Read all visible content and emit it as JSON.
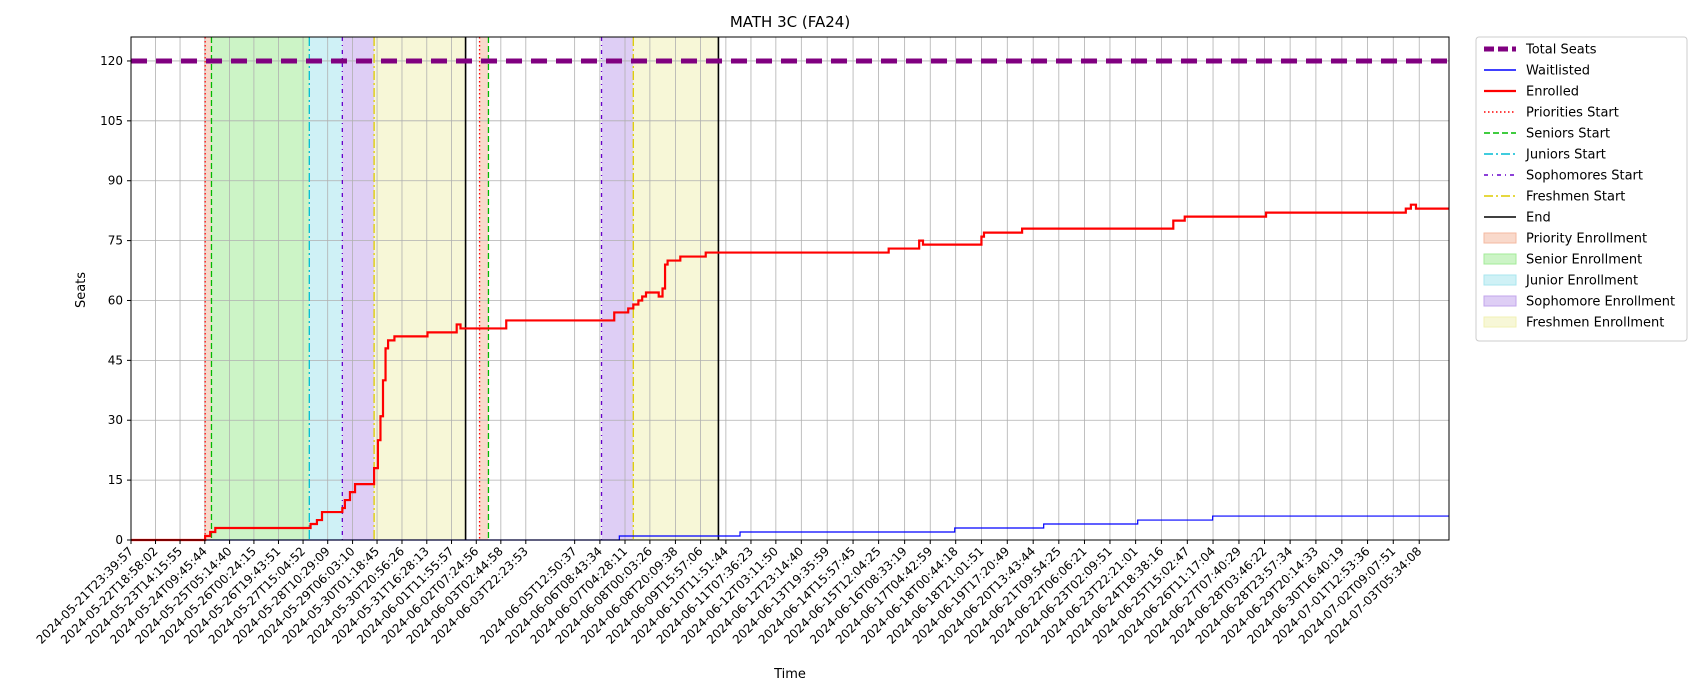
{
  "chart_data": {
    "type": "line",
    "title": "MATH 3C (FA24)",
    "xlabel": "Time",
    "ylabel": "Seats",
    "ylim": [
      0,
      126
    ],
    "yticks": [
      0,
      15,
      30,
      45,
      60,
      75,
      90,
      105,
      120
    ],
    "grid": true,
    "legend_position": "outside-right",
    "x_start": "2024-05-21T23:39:57",
    "x_end": "2024-07-04T05:00:00",
    "xtick_labels": [
      "2024-05-21T23:39:57",
      "2024-05-22T18:58:02",
      "2024-05-23T14:15:55",
      "2024-05-24T09:45:44",
      "2024-05-25T05:14:40",
      "2024-05-26T00:24:15",
      "2024-05-26T19:43:51",
      "2024-05-27T15:04:52",
      "2024-05-28T10:29:09",
      "2024-05-29T06:03:10",
      "2024-05-30T01:18:45",
      "2024-05-30T20:56:26",
      "2024-05-31T16:28:13",
      "2024-06-01T11:55:57",
      "2024-06-02T07:24:56",
      "2024-06-03T02:44:58",
      "2024-06-03T22:23:53",
      "2024-06-05T12:50:37",
      "2024-06-06T08:43:34",
      "2024-06-07T04:28:11",
      "2024-06-08T00:03:26",
      "2024-06-08T20:09:38",
      "2024-06-09T15:57:06",
      "2024-06-10T11:51:44",
      "2024-06-11T07:36:23",
      "2024-06-12T03:11:50",
      "2024-06-12T23:14:40",
      "2024-06-13T19:35:59",
      "2024-06-14T15:57:45",
      "2024-06-15T12:04:25",
      "2024-06-16T08:33:19",
      "2024-06-17T04:42:59",
      "2024-06-18T00:44:18",
      "2024-06-18T21:01:51",
      "2024-06-19T17:20:49",
      "2024-06-20T13:43:44",
      "2024-06-21T09:54:25",
      "2024-06-22T06:06:21",
      "2024-06-23T02:09:51",
      "2024-06-23T22:21:01",
      "2024-06-24T18:38:16",
      "2024-06-25T15:02:47",
      "2024-06-26T11:17:04",
      "2024-06-27T07:40:29",
      "2024-06-28T03:46:22",
      "2024-06-28T23:57:34",
      "2024-06-29T20:14:33",
      "2024-06-30T16:40:19",
      "2024-07-01T12:53:36",
      "2024-07-02T09:07:51",
      "2024-07-03T05:34:08"
    ],
    "series": [
      {
        "name": "Total Seats",
        "color": "#800080",
        "style": "dashed-thick",
        "points": [
          [
            "2024-05-21T23:39:57",
            120
          ],
          [
            "2024-07-04T05:00:00",
            120
          ]
        ]
      },
      {
        "name": "Waitlisted",
        "color": "#0000ff",
        "style": "step",
        "points": [
          [
            "2024-05-21T23:39:57",
            0
          ],
          [
            "2024-06-07T00:00:00",
            0
          ],
          [
            "2024-06-07T00:00:00",
            1
          ],
          [
            "2024-06-10T23:00:00",
            1
          ],
          [
            "2024-06-10T23:00:00",
            2
          ],
          [
            "2024-06-18T00:00:00",
            2
          ],
          [
            "2024-06-18T00:00:00",
            3
          ],
          [
            "2024-06-20T22:00:00",
            3
          ],
          [
            "2024-06-20T22:00:00",
            4
          ],
          [
            "2024-06-24T00:00:00",
            4
          ],
          [
            "2024-06-24T00:00:00",
            5
          ],
          [
            "2024-06-26T11:00:00",
            5
          ],
          [
            "2024-06-26T11:00:00",
            6
          ],
          [
            "2024-07-04T05:00:00",
            6
          ]
        ]
      },
      {
        "name": "Enrolled",
        "color": "#ff0000",
        "style": "step",
        "points": [
          [
            "2024-05-21T23:39:57",
            0
          ],
          [
            "2024-05-24T10:00:00",
            0
          ],
          [
            "2024-05-24T10:00:00",
            1
          ],
          [
            "2024-05-24T14:00:00",
            1
          ],
          [
            "2024-05-24T14:00:00",
            2
          ],
          [
            "2024-05-24T18:00:00",
            2
          ],
          [
            "2024-05-24T18:00:00",
            3
          ],
          [
            "2024-05-27T21:00:00",
            3
          ],
          [
            "2024-05-27T21:00:00",
            4
          ],
          [
            "2024-05-28T02:00:00",
            4
          ],
          [
            "2024-05-28T02:00:00",
            5
          ],
          [
            "2024-05-28T06:00:00",
            5
          ],
          [
            "2024-05-28T06:00:00",
            7
          ],
          [
            "2024-05-28T22:00:00",
            7
          ],
          [
            "2024-05-28T22:00:00",
            8
          ],
          [
            "2024-05-29T00:00:00",
            8
          ],
          [
            "2024-05-29T00:00:00",
            10
          ],
          [
            "2024-05-29T04:00:00",
            10
          ],
          [
            "2024-05-29T04:00:00",
            12
          ],
          [
            "2024-05-29T08:00:00",
            12
          ],
          [
            "2024-05-29T08:00:00",
            14
          ],
          [
            "2024-05-29T23:00:00",
            14
          ],
          [
            "2024-05-29T23:00:00",
            18
          ],
          [
            "2024-05-30T02:00:00",
            18
          ],
          [
            "2024-05-30T02:00:00",
            25
          ],
          [
            "2024-05-30T04:00:00",
            25
          ],
          [
            "2024-05-30T04:00:00",
            31
          ],
          [
            "2024-05-30T06:00:00",
            31
          ],
          [
            "2024-05-30T06:00:00",
            40
          ],
          [
            "2024-05-30T08:00:00",
            40
          ],
          [
            "2024-05-30T08:00:00",
            48
          ],
          [
            "2024-05-30T10:00:00",
            48
          ],
          [
            "2024-05-30T10:00:00",
            50
          ],
          [
            "2024-05-30T15:00:00",
            50
          ],
          [
            "2024-05-30T15:00:00",
            51
          ],
          [
            "2024-05-31T17:00:00",
            51
          ],
          [
            "2024-05-31T17:00:00",
            52
          ],
          [
            "2024-06-01T16:00:00",
            52
          ],
          [
            "2024-06-01T16:00:00",
            54
          ],
          [
            "2024-06-01T19:00:00",
            54
          ],
          [
            "2024-06-01T19:00:00",
            53
          ],
          [
            "2024-06-03T07:00:00",
            53
          ],
          [
            "2024-06-03T07:00:00",
            55
          ],
          [
            "2024-06-06T20:00:00",
            55
          ],
          [
            "2024-06-06T20:00:00",
            57
          ],
          [
            "2024-06-07T07:00:00",
            57
          ],
          [
            "2024-06-07T07:00:00",
            58
          ],
          [
            "2024-06-07T11:00:00",
            58
          ],
          [
            "2024-06-07T11:00:00",
            59
          ],
          [
            "2024-06-07T15:00:00",
            59
          ],
          [
            "2024-06-07T15:00:00",
            60
          ],
          [
            "2024-06-07T18:00:00",
            60
          ],
          [
            "2024-06-07T18:00:00",
            61
          ],
          [
            "2024-06-07T21:00:00",
            61
          ],
          [
            "2024-06-07T21:00:00",
            62
          ],
          [
            "2024-06-08T07:00:00",
            62
          ],
          [
            "2024-06-08T07:00:00",
            61
          ],
          [
            "2024-06-08T10:00:00",
            61
          ],
          [
            "2024-06-08T10:00:00",
            63
          ],
          [
            "2024-06-08T12:00:00",
            63
          ],
          [
            "2024-06-08T12:00:00",
            69
          ],
          [
            "2024-06-08T14:00:00",
            69
          ],
          [
            "2024-06-08T14:00:00",
            70
          ],
          [
            "2024-06-09T00:00:00",
            70
          ],
          [
            "2024-06-09T00:00:00",
            71
          ],
          [
            "2024-06-09T20:00:00",
            71
          ],
          [
            "2024-06-09T20:00:00",
            72
          ],
          [
            "2024-06-15T20:00:00",
            72
          ],
          [
            "2024-06-15T20:00:00",
            73
          ],
          [
            "2024-06-16T20:00:00",
            73
          ],
          [
            "2024-06-16T20:00:00",
            75
          ],
          [
            "2024-06-16T23:00:00",
            75
          ],
          [
            "2024-06-16T23:00:00",
            74
          ],
          [
            "2024-06-18T21:00:00",
            74
          ],
          [
            "2024-06-18T21:00:00",
            76
          ],
          [
            "2024-06-18T23:00:00",
            76
          ],
          [
            "2024-06-18T23:00:00",
            77
          ],
          [
            "2024-06-20T05:00:00",
            77
          ],
          [
            "2024-06-20T05:00:00",
            78
          ],
          [
            "2024-06-25T04:00:00",
            78
          ],
          [
            "2024-06-25T04:00:00",
            80
          ],
          [
            "2024-06-25T13:00:00",
            80
          ],
          [
            "2024-06-25T13:00:00",
            81
          ],
          [
            "2024-06-28T05:00:00",
            81
          ],
          [
            "2024-06-28T05:00:00",
            82
          ],
          [
            "2024-07-02T19:00:00",
            82
          ],
          [
            "2024-07-02T19:00:00",
            83
          ],
          [
            "2024-07-02T23:00:00",
            83
          ],
          [
            "2024-07-02T23:00:00",
            84
          ],
          [
            "2024-07-03T03:00:00",
            84
          ],
          [
            "2024-07-03T03:00:00",
            83
          ],
          [
            "2024-07-04T05:00:00",
            83
          ]
        ]
      }
    ],
    "vertical_markers": [
      {
        "name": "Priorities Start",
        "color": "#ff0000",
        "style": "dotted",
        "x": [
          "2024-05-24T10:00:00",
          "2024-06-02T10:00:00"
        ]
      },
      {
        "name": "Seniors Start",
        "color": "#00bb00",
        "style": "dashed",
        "x": [
          "2024-05-24T15:00:00",
          "2024-06-02T17:00:00"
        ]
      },
      {
        "name": "Juniors Start",
        "color": "#00bcd4",
        "style": "dashdot",
        "x": [
          "2024-05-27T20:00:00"
        ]
      },
      {
        "name": "Sophomores Start",
        "color": "#6600cc",
        "style": "dashdot-dense",
        "x": [
          "2024-05-28T22:00:00",
          "2024-06-06T10:00:00"
        ]
      },
      {
        "name": "Freshmen Start",
        "color": "#ddcc00",
        "style": "dashdot",
        "x": [
          "2024-05-29T23:00:00",
          "2024-06-07T11:00:00"
        ]
      },
      {
        "name": "End",
        "color": "#000000",
        "style": "solid",
        "x": [
          "2024-06-01T23:00:00",
          "2024-06-10T06:00:00"
        ]
      }
    ],
    "shaded_regions": [
      {
        "name": "Priority Enrollment",
        "color": "#f4b9a0",
        "spans": [
          [
            "2024-05-24T10:00:00",
            "2024-05-24T15:00:00"
          ],
          [
            "2024-06-02T10:00:00",
            "2024-06-02T17:00:00"
          ]
        ]
      },
      {
        "name": "Senior Enrollment",
        "color": "#a3eb98",
        "spans": [
          [
            "2024-05-24T15:00:00",
            "2024-05-27T20:00:00"
          ]
        ]
      },
      {
        "name": "Junior Enrollment",
        "color": "#a8e6ef",
        "spans": [
          [
            "2024-05-27T20:00:00",
            "2024-05-28T22:00:00"
          ]
        ]
      },
      {
        "name": "Sophomore Enrollment",
        "color": "#c3a6ec",
        "spans": [
          [
            "2024-05-28T22:00:00",
            "2024-05-29T23:00:00"
          ],
          [
            "2024-06-06T10:00:00",
            "2024-06-07T11:00:00"
          ]
        ]
      },
      {
        "name": "Freshmen Enrollment",
        "color": "#f1f1b6",
        "spans": [
          [
            "2024-05-29T23:00:00",
            "2024-06-01T23:00:00"
          ],
          [
            "2024-06-07T11:00:00",
            "2024-06-10T06:00:00"
          ]
        ]
      }
    ],
    "legend_order": [
      "Total Seats",
      "Waitlisted",
      "Enrolled",
      "Priorities Start",
      "Seniors Start",
      "Juniors Start",
      "Sophomores Start",
      "Freshmen Start",
      "End",
      "Priority Enrollment",
      "Senior Enrollment",
      "Junior Enrollment",
      "Sophomore Enrollment",
      "Freshmen Enrollment"
    ]
  }
}
